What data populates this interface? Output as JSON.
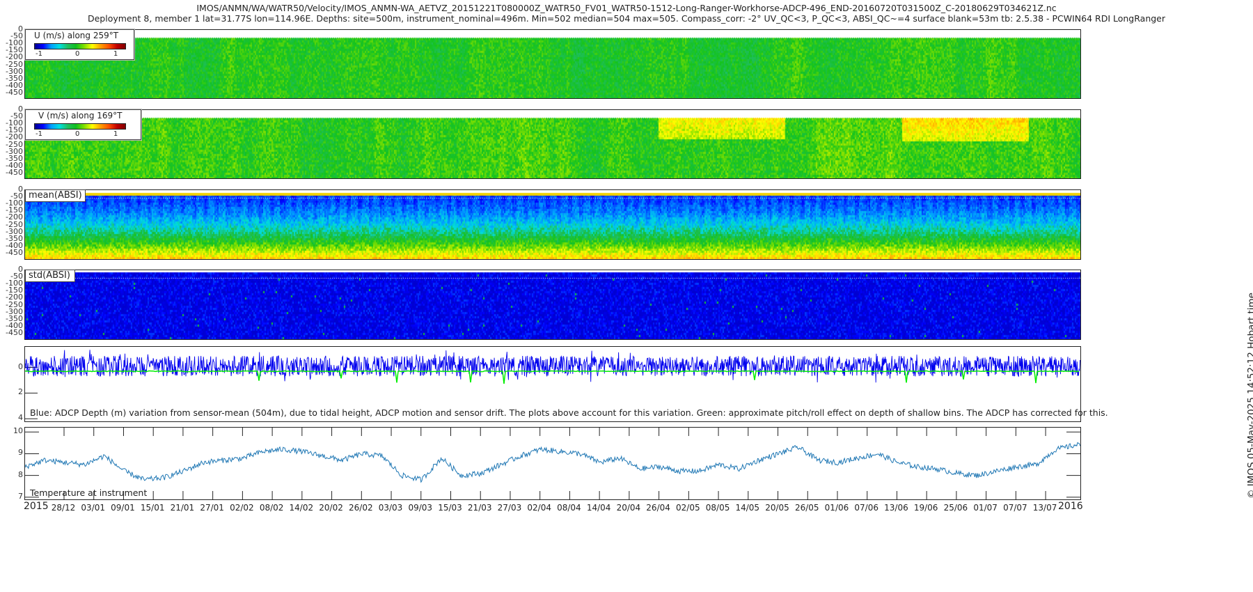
{
  "title_line1": "IMOS/ANMN/WA/WATR50/Velocity/IMOS_ANMN-WA_AETVZ_20151221T080000Z_WATR50_FV01_WATR50-1512-Long-Ranger-Workhorse-ADCP-496_END-20160720T031500Z_C-20180629T034621Z.nc",
  "title_line2": "Deployment 8, member 1 lat=31.77S lon=114.96E. Depths: site=500m, instrument_nominal=496m. Min=502 median=504 max=505. Compass_corr: -2° UV_QC<3, P_QC<3, ABSI_QC~=4 surface blank=53m tb: 2.5.38 - PCWIN64 RDI LongRanger",
  "timestamp": "© IMOS 05-May-2025 14:52:12 Hobart time",
  "colors": {
    "depth_series": "#0000ee",
    "pitch_roll_series": "#00ee00",
    "temperature_series": "#1f77b4"
  },
  "chart_data": [
    {
      "type": "heatmap",
      "title": "U (m/s) along 259°T",
      "ylabel_ticks": [
        "0",
        "-50",
        "-100",
        "-150",
        "-200",
        "-250",
        "-300",
        "-350",
        "-400",
        "-450"
      ],
      "ylim": [
        -490,
        0
      ],
      "colorbar_ticks": [
        "-1",
        "0",
        "1"
      ],
      "clim": [
        -1.2,
        1.2
      ],
      "description_values": {
        "typical": 0.0,
        "range": [
          -0.5,
          0.6
        ]
      }
    },
    {
      "type": "heatmap",
      "title": "V (m/s) along 169°T",
      "ylabel_ticks": [
        "0",
        "-50",
        "-100",
        "-150",
        "-200",
        "-250",
        "-300",
        "-350",
        "-400",
        "-450"
      ],
      "ylim": [
        -490,
        0
      ],
      "colorbar_ticks": [
        "-1",
        "0",
        "1"
      ],
      "clim": [
        -1.2,
        1.2
      ],
      "description_values": {
        "typical": 0.1,
        "range": [
          -0.4,
          0.9
        ]
      }
    },
    {
      "type": "heatmap",
      "title": "mean(ABSI)",
      "ylabel_ticks": [
        "0",
        "-50",
        "-100",
        "-150",
        "-200",
        "-250",
        "-300",
        "-350",
        "-400",
        "-450"
      ],
      "ylim": [
        -490,
        0
      ]
    },
    {
      "type": "heatmap",
      "title": "std(ABSI)",
      "ylabel_ticks": [
        "0",
        "-50",
        "-100",
        "-150",
        "-200",
        "-250",
        "-300",
        "-350",
        "-400",
        "-450"
      ],
      "ylim": [
        -490,
        0
      ]
    },
    {
      "type": "line",
      "title": "Blue: ADCP Depth (m) variation from sensor-mean (504m), due to tidal height, ADCP motion and sensor drift. The plots above account for this variation. Green: approximate pitch/roll effect on depth of shallow bins. The ADCP has corrected for this.",
      "ylabel_ticks": [
        "0",
        "2",
        "4"
      ],
      "ylim": [
        -1.6,
        4.2
      ],
      "series": [
        {
          "name": "ADCP depth variation",
          "mean": 0.1,
          "amplitude": 1.0
        },
        {
          "name": "pitch/roll effect",
          "mean": 0.3
        }
      ]
    },
    {
      "type": "line",
      "title": "Temperature at instrument",
      "ylabel_ticks": [
        "10",
        "9",
        "8",
        "7"
      ],
      "ylim": [
        6.9,
        10.2
      ],
      "x_days_from_start": [
        0,
        4,
        8,
        12,
        16,
        20,
        24,
        28,
        32,
        36,
        40,
        44,
        48,
        52,
        56,
        60,
        64,
        68,
        72,
        76,
        80,
        84,
        88,
        92,
        96,
        100,
        104,
        108,
        112,
        116,
        120,
        124,
        128,
        132,
        136,
        140,
        144,
        148,
        152,
        156,
        160,
        164,
        168,
        172,
        176,
        180,
        184,
        188,
        192,
        196,
        200,
        204,
        208,
        212
      ],
      "values": [
        8.4,
        8.7,
        8.6,
        8.5,
        8.9,
        8.2,
        7.8,
        7.9,
        8.2,
        8.6,
        8.7,
        8.8,
        9.1,
        9.2,
        9.1,
        8.9,
        8.7,
        9.0,
        8.9,
        8.0,
        7.8,
        8.8,
        8.0,
        8.1,
        8.5,
        8.9,
        9.2,
        9.1,
        9.0,
        8.6,
        8.8,
        8.3,
        8.4,
        8.2,
        8.2,
        8.5,
        8.3,
        8.7,
        9.0,
        9.3,
        8.7,
        8.6,
        8.8,
        9.0,
        8.6,
        8.4,
        8.3,
        8.1,
        8.0,
        8.2,
        8.4,
        8.5,
        9.2,
        9.4
      ]
    },
    {
      "type": "x-axis",
      "start_label": "2015",
      "end_label": "2016",
      "ticks": [
        "28/12",
        "03/01",
        "09/01",
        "15/01",
        "21/01",
        "27/01",
        "02/02",
        "08/02",
        "14/02",
        "20/02",
        "26/02",
        "03/03",
        "09/03",
        "15/03",
        "21/03",
        "27/03",
        "02/04",
        "08/04",
        "14/04",
        "20/04",
        "26/04",
        "02/05",
        "08/05",
        "14/05",
        "20/05",
        "26/05",
        "01/06",
        "07/06",
        "13/06",
        "19/06",
        "25/06",
        "01/07",
        "07/07",
        "13/07"
      ]
    }
  ]
}
